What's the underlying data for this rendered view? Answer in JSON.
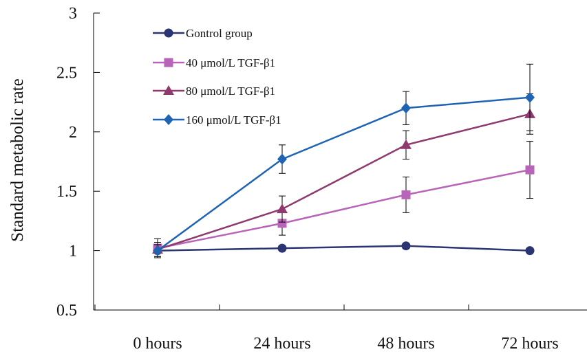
{
  "chart_data": {
    "type": "line",
    "title": "",
    "xlabel": "",
    "ylabel": "Standard metabolic rate",
    "categories": [
      "0 hours",
      "24 hours",
      "48 hours",
      "72 hours"
    ],
    "ylim": [
      0.5,
      3
    ],
    "yticks": [
      "0.5",
      "1",
      "1.5",
      "2",
      "2.5",
      "3"
    ],
    "ytick_values": [
      0.5,
      1,
      1.5,
      2,
      2.5,
      3
    ],
    "grid": false,
    "legend_position": "top-left",
    "series": [
      {
        "name": "Gontrol group",
        "color": "#2b3572",
        "marker": "circle",
        "values": [
          1.0,
          1.02,
          1.04,
          1.0
        ],
        "errors": [
          null,
          null,
          null,
          null
        ]
      },
      {
        "name": "40 μmol/L TGF-β1",
        "color": "#b864b9",
        "marker": "square",
        "values": [
          1.02,
          1.23,
          1.47,
          1.68
        ],
        "errors": [
          0.08,
          0.1,
          0.15,
          0.24
        ]
      },
      {
        "name": "80 μmol/L TGF-β1",
        "color": "#8e3a6e",
        "marker": "triangle",
        "values": [
          1.01,
          1.35,
          1.89,
          2.15
        ],
        "errors": [
          0.06,
          0.11,
          0.12,
          0.17
        ]
      },
      {
        "name": "160 μmol/L TGF-β1",
        "color": "#1f64b3",
        "marker": "diamond",
        "values": [
          1.0,
          1.77,
          2.2,
          2.29
        ],
        "errors": [
          0.05,
          0.12,
          0.14,
          0.28
        ]
      }
    ]
  }
}
